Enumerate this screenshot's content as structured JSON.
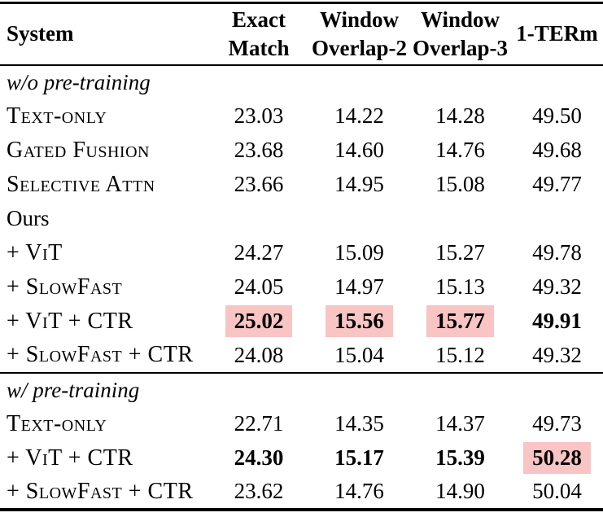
{
  "colors": {
    "highlight": "#f8c4c4",
    "text": "#000000",
    "background": "#ffffff"
  },
  "table": {
    "header": {
      "system": "System",
      "cols": [
        {
          "line1": "Exact",
          "line2": "Match"
        },
        {
          "line1": "Window",
          "line2": "Overlap-2"
        },
        {
          "line1": "Window",
          "line2": "Overlap-3"
        },
        {
          "line1": "1-TERm",
          "line2": ""
        }
      ]
    },
    "rows": [
      {
        "type": "section",
        "label": "w/o pre-training"
      },
      {
        "type": "data",
        "label": "Text-only",
        "values": [
          "23.03",
          "14.22",
          "14.28",
          "49.50"
        ]
      },
      {
        "type": "data",
        "label": "Gated Fushion",
        "values": [
          "23.68",
          "14.60",
          "14.76",
          "49.68"
        ]
      },
      {
        "type": "data",
        "label": "Selective Attn",
        "values": [
          "23.66",
          "14.95",
          "15.08",
          "49.77"
        ]
      },
      {
        "type": "plain-section",
        "label": "Ours"
      },
      {
        "type": "data",
        "label": "+ ViT",
        "values": [
          "24.27",
          "15.09",
          "15.27",
          "49.78"
        ]
      },
      {
        "type": "data",
        "label": "+ SlowFast",
        "values": [
          "24.05",
          "14.97",
          "15.13",
          "49.32"
        ]
      },
      {
        "type": "data",
        "label": "+ ViT + CTR",
        "values": [
          "25.02",
          "15.56",
          "15.77",
          "49.91"
        ],
        "bold": [
          0,
          1,
          2,
          3
        ],
        "highlight": [
          0,
          1,
          2
        ]
      },
      {
        "type": "data",
        "label": "+ SlowFast + CTR",
        "values": [
          "24.08",
          "15.04",
          "15.12",
          "49.32"
        ]
      },
      {
        "type": "section",
        "label": "w/ pre-training"
      },
      {
        "type": "data",
        "label": "Text-only",
        "values": [
          "22.71",
          "14.35",
          "14.37",
          "49.73"
        ]
      },
      {
        "type": "data",
        "label": "+ ViT + CTR",
        "values": [
          "24.30",
          "15.17",
          "15.39",
          "50.28"
        ],
        "bold": [
          0,
          1,
          2,
          3
        ],
        "highlight": [
          3
        ]
      },
      {
        "type": "data",
        "label": "+ SlowFast + CTR",
        "values": [
          "23.62",
          "14.76",
          "14.90",
          "50.04"
        ]
      }
    ]
  }
}
